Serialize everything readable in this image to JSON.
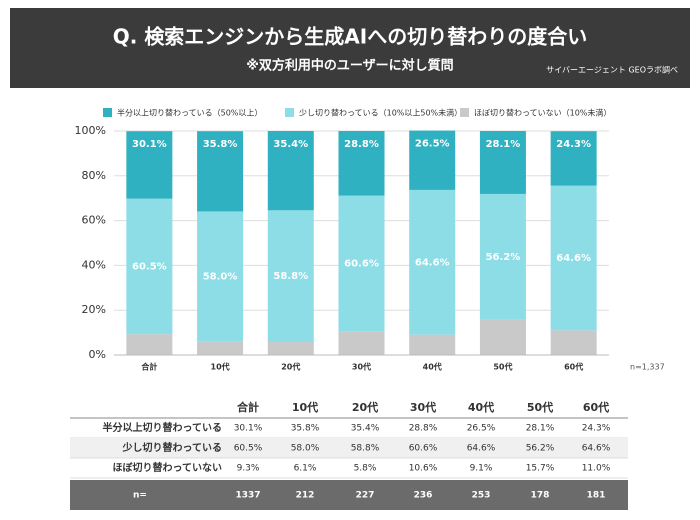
{
  "header": {
    "title": "Q. 検索エンジンから生成AIへの切り替わりの度合い",
    "subtitle": "※双方利用中のユーザーに対し質問",
    "source": "サイバーエージェント GEOラボ調べ"
  },
  "chart_data": {
    "type": "stacked_bar",
    "categories": [
      "合計",
      "10代",
      "20代",
      "30代",
      "40代",
      "50代",
      "60代"
    ],
    "series": [
      {
        "name": "ほぼ切り替わっていない（10%未満）",
        "color": "#c9c9c9",
        "values": [
          9.3,
          6.1,
          5.8,
          10.6,
          9.1,
          15.7,
          11.0
        ]
      },
      {
        "name": "少し切り替わっている（10%以上50%未満）",
        "color": "#8cdde6",
        "values": [
          60.5,
          58.0,
          58.8,
          60.6,
          64.6,
          56.2,
          64.6
        ],
        "value_labels": [
          "60.5%",
          "58.0%",
          "58.8%",
          "60.6%",
          "64.6%",
          "56.2%",
          "64.6%"
        ]
      },
      {
        "name": "半分以上切り替わっている（50%以上）",
        "color": "#2fb1c1",
        "values": [
          30.1,
          35.8,
          35.4,
          28.8,
          26.5,
          28.1,
          24.3
        ],
        "value_labels": [
          "30.1%",
          "35.8%",
          "35.4%",
          "28.8%",
          "26.5%",
          "28.1%",
          "24.3%"
        ]
      }
    ],
    "legend_order": [
      2,
      1,
      0
    ],
    "ylim": [
      0,
      100
    ],
    "yticks": [
      {
        "value": 0,
        "label": "0%"
      },
      {
        "value": 20,
        "label": "20%"
      },
      {
        "value": 40,
        "label": "40%"
      },
      {
        "value": 60,
        "label": "60%"
      },
      {
        "value": 80,
        "label": "80%"
      },
      {
        "value": 100,
        "label": "100%"
      }
    ],
    "grid": true,
    "note": "n=1,337"
  },
  "table": {
    "header": [
      "合計",
      "10代",
      "20代",
      "30代",
      "40代",
      "50代",
      "60代"
    ],
    "rows": [
      [
        "半分以上切り替わっている",
        "30.1%",
        "35.8%",
        "35.4%",
        "28.8%",
        "26.5%",
        "28.1%",
        "24.3%"
      ],
      [
        "少し切り替わっている",
        "60.5%",
        "58.0%",
        "58.8%",
        "60.6%",
        "64.6%",
        "56.2%",
        "64.6%"
      ],
      [
        "ほぼ切り替わっていない",
        "9.3%",
        "6.1%",
        "5.8%",
        "10.6%",
        "9.1%",
        "15.7%",
        "11.0%"
      ]
    ],
    "footer": [
      "n=",
      "1337",
      "212",
      "227",
      "236",
      "253",
      "178",
      "181"
    ]
  }
}
